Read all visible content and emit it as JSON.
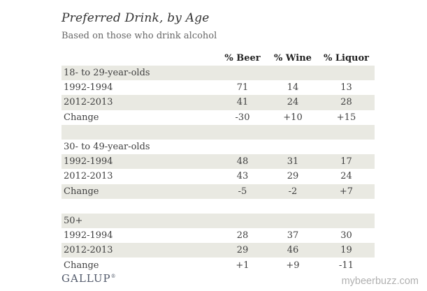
{
  "chart_data": {
    "type": "table",
    "title": "Preferred Drink, by Age",
    "subtitle": "Based on those who drink alcohol",
    "columns": [
      "% Beer",
      "% Wine",
      "% Liquor"
    ],
    "sections": [
      {
        "label": "18- to 29-year-olds",
        "rows": [
          {
            "label": "1992-1994",
            "values": [
              "71",
              "14",
              "13"
            ]
          },
          {
            "label": "2012-2013",
            "values": [
              "41",
              "24",
              "28"
            ]
          },
          {
            "label": "Change",
            "values": [
              "-30",
              "+10",
              "+15"
            ]
          }
        ]
      },
      {
        "label": "30- to 49-year-olds",
        "rows": [
          {
            "label": "1992-1994",
            "values": [
              "48",
              "31",
              "17"
            ]
          },
          {
            "label": "2012-2013",
            "values": [
              "43",
              "29",
              "24"
            ]
          },
          {
            "label": "Change",
            "values": [
              "-5",
              "-2",
              "+7"
            ]
          }
        ]
      },
      {
        "label": "50+",
        "rows": [
          {
            "label": "1992-1994",
            "values": [
              "28",
              "37",
              "30"
            ]
          },
          {
            "label": "2012-2013",
            "values": [
              "29",
              "46",
              "19"
            ]
          },
          {
            "label": "Change",
            "values": [
              "+1",
              "+9",
              "-11"
            ]
          }
        ]
      }
    ],
    "layout": {
      "row_shading": "alternating",
      "value_alignment": "center",
      "spacer_rows_between_sections": true
    }
  },
  "footer": {
    "brand": "GALLUP",
    "brand_mark": "®",
    "watermark": "mybeerbuzz.com"
  },
  "colors": {
    "row_shade": "#e9e9e2",
    "title_text": "#333333",
    "subtitle_text": "#666666",
    "body_text": "#404040",
    "brand_text": "#51596a",
    "watermark_text": "#b0b0b0"
  }
}
